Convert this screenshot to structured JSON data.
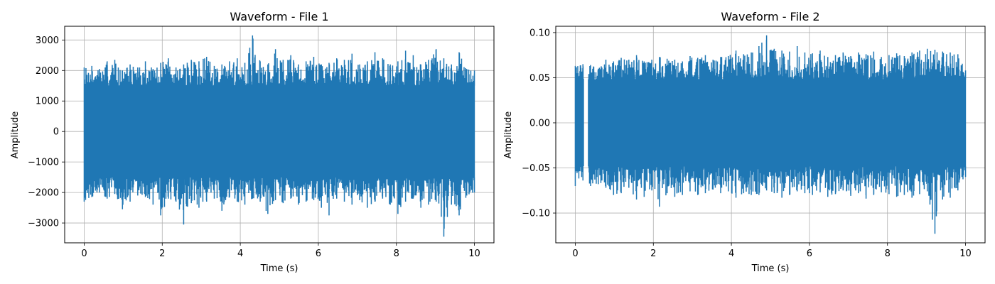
{
  "chart_data": [
    {
      "type": "line",
      "title": "Waveform - File 1",
      "xlabel": "Time (s)",
      "ylabel": "Amplitude",
      "xlim": [
        -0.5,
        10.5
      ],
      "ylim": [
        -3650,
        3450
      ],
      "xticks": [
        0,
        2,
        4,
        6,
        8,
        10
      ],
      "yticks": [
        -3000,
        -2000,
        -1000,
        0,
        1000,
        2000,
        3000
      ],
      "xtick_labels": [
        "0",
        "2",
        "4",
        "6",
        "8",
        "10"
      ],
      "ytick_labels": [
        "−3000",
        "−2000",
        "−1000",
        "0",
        "1000",
        "2000",
        "3000"
      ],
      "grid": true,
      "color": "#1f77b4",
      "series": [
        {
          "x_range": [
            0,
            10
          ],
          "envelope_upper": [
            2100,
            2150,
            2050,
            2300,
            2350,
            2000,
            2200,
            2100,
            2300,
            2050,
            2250,
            2400,
            2100,
            2200,
            2350,
            2300,
            2450,
            2150,
            2200,
            2300,
            2400,
            2250,
            3150,
            2300,
            2200,
            2700,
            2350,
            2500,
            2200,
            2300,
            2450,
            2200,
            2250,
            2400,
            2350,
            2550,
            2200,
            2300,
            2600,
            2400,
            2200,
            2300,
            2650,
            2500,
            2200,
            2350,
            2700,
            2400,
            2200,
            2600,
            2050,
            2000
          ],
          "envelope_lower": [
            -2300,
            -2150,
            -2000,
            -2200,
            -2050,
            -2550,
            -2300,
            -2100,
            -2150,
            -2400,
            -2750,
            -2200,
            -2300,
            -3050,
            -2350,
            -2500,
            -2300,
            -2200,
            -2600,
            -2150,
            -2300,
            -2400,
            -2200,
            -2300,
            -2700,
            -2250,
            -2350,
            -2200,
            -2400,
            -2300,
            -2250,
            -2500,
            -2750,
            -2200,
            -2300,
            -2400,
            -2250,
            -2500,
            -2300,
            -2200,
            -2400,
            -2700,
            -2300,
            -2200,
            -2500,
            -2400,
            -2300,
            -3450,
            -2400,
            -2750,
            -2100,
            -2000
          ],
          "body_upper": 1500,
          "body_lower": -1500
        }
      ]
    },
    {
      "type": "line",
      "title": "Waveform - File 2",
      "xlabel": "Time (s)",
      "ylabel": "Amplitude",
      "xlim": [
        -0.5,
        10.5
      ],
      "ylim": [
        -0.133,
        0.107
      ],
      "xticks": [
        0,
        2,
        4,
        6,
        8,
        10
      ],
      "yticks": [
        -0.1,
        -0.05,
        0.0,
        0.05,
        0.1
      ],
      "xtick_labels": [
        "0",
        "2",
        "4",
        "6",
        "8",
        "10"
      ],
      "ytick_labels": [
        "−0.10",
        "−0.05",
        "0.00",
        "0.05",
        "0.10"
      ],
      "grid": true,
      "color": "#1f77b4",
      "gap": [
        0.21,
        0.33
      ],
      "series": [
        {
          "x_range": [
            0,
            10
          ],
          "envelope_upper": [
            0.063,
            0.065,
            0.064,
            0.06,
            0.07,
            0.068,
            0.072,
            0.07,
            0.075,
            0.068,
            0.07,
            0.073,
            0.071,
            0.07,
            0.068,
            0.074,
            0.072,
            0.075,
            0.07,
            0.073,
            0.074,
            0.08,
            0.076,
            0.078,
            0.085,
            0.097,
            0.082,
            0.08,
            0.079,
            0.085,
            0.078,
            0.077,
            0.08,
            0.073,
            0.075,
            0.078,
            0.074,
            0.078,
            0.076,
            0.079,
            0.073,
            0.075,
            0.077,
            0.074,
            0.078,
            0.08,
            0.082,
            0.081,
            0.079,
            0.078,
            0.076,
            0.058
          ],
          "envelope_lower": [
            -0.07,
            -0.064,
            -0.07,
            -0.068,
            -0.072,
            -0.08,
            -0.078,
            -0.072,
            -0.085,
            -0.082,
            -0.075,
            -0.093,
            -0.078,
            -0.082,
            -0.08,
            -0.076,
            -0.08,
            -0.078,
            -0.074,
            -0.078,
            -0.076,
            -0.083,
            -0.078,
            -0.08,
            -0.08,
            -0.075,
            -0.078,
            -0.083,
            -0.08,
            -0.076,
            -0.078,
            -0.08,
            -0.077,
            -0.082,
            -0.079,
            -0.075,
            -0.081,
            -0.078,
            -0.084,
            -0.08,
            -0.077,
            -0.079,
            -0.082,
            -0.08,
            -0.083,
            -0.079,
            -0.076,
            -0.123,
            -0.085,
            -0.083,
            -0.075,
            -0.06
          ],
          "body_upper": 0.048,
          "body_lower": -0.048
        }
      ]
    }
  ]
}
